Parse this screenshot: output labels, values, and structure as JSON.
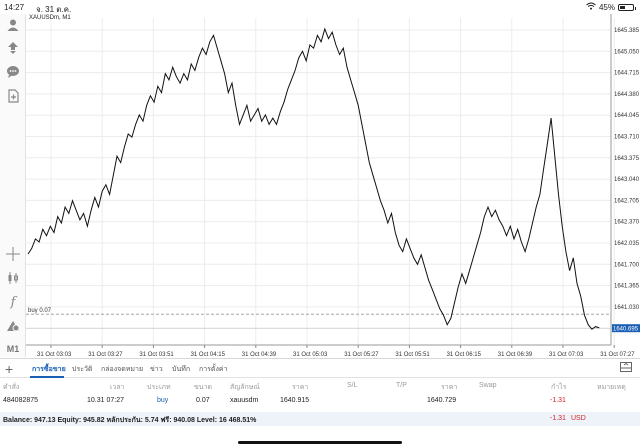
{
  "status_bar": {
    "time": "14:27",
    "date": "จ. 31 ต.ค.",
    "battery": "45%",
    "battery_level": 0.45
  },
  "chart": {
    "symbol": "XAUUSDm, M1",
    "line_color": "#111111",
    "price_ticks": [
      "1645.385",
      "1645.050",
      "1644.715",
      "1644.380",
      "1644.045",
      "1643.710",
      "1643.375",
      "1643.040",
      "1642.705",
      "1642.370",
      "1642.035",
      "1641.700",
      "1641.365",
      "1641.030"
    ],
    "current_price": "1640.695",
    "current_price_color": "#1a5fb4",
    "trade_line_label": "buy 0.07",
    "trade_line_price": 1640.915,
    "time_ticks": [
      "31 Oct 03:03",
      "31 Oct 03:27",
      "31 Oct 03:51",
      "31 Oct 04:15",
      "31 Oct 04:39",
      "31 Oct 05:03",
      "31 Oct 05:27",
      "31 Oct 05:51",
      "31 Oct 06:15",
      "31 Oct 06:39",
      "31 Oct 07:03",
      "31 Oct 07:27"
    ],
    "price_path": [
      [
        0,
        1641.86
      ],
      [
        3,
        1641.95
      ],
      [
        6,
        1642.1
      ],
      [
        9,
        1642.05
      ],
      [
        12,
        1642.25
      ],
      [
        15,
        1642.15
      ],
      [
        18,
        1642.3
      ],
      [
        21,
        1642.2
      ],
      [
        24,
        1642.45
      ],
      [
        27,
        1642.35
      ],
      [
        30,
        1642.6
      ],
      [
        33,
        1642.5
      ],
      [
        36,
        1642.7
      ],
      [
        39,
        1642.55
      ],
      [
        42,
        1642.4
      ],
      [
        45,
        1642.5
      ],
      [
        48,
        1642.3
      ],
      [
        51,
        1642.55
      ],
      [
        54,
        1642.75
      ],
      [
        57,
        1642.6
      ],
      [
        60,
        1642.85
      ],
      [
        63,
        1642.95
      ],
      [
        66,
        1642.8
      ],
      [
        69,
        1643.1
      ],
      [
        72,
        1643.4
      ],
      [
        75,
        1643.3
      ],
      [
        78,
        1643.55
      ],
      [
        81,
        1643.75
      ],
      [
        84,
        1643.7
      ],
      [
        87,
        1643.9
      ],
      [
        90,
        1644.05
      ],
      [
        93,
        1643.95
      ],
      [
        96,
        1644.2
      ],
      [
        99,
        1644.35
      ],
      [
        102,
        1644.25
      ],
      [
        105,
        1644.5
      ],
      [
        108,
        1644.4
      ],
      [
        111,
        1644.7
      ],
      [
        114,
        1644.6
      ],
      [
        117,
        1644.8
      ],
      [
        120,
        1644.65
      ],
      [
        123,
        1644.55
      ],
      [
        126,
        1644.7
      ],
      [
        129,
        1644.6
      ],
      [
        132,
        1644.85
      ],
      [
        135,
        1644.75
      ],
      [
        138,
        1644.95
      ],
      [
        141,
        1645.1
      ],
      [
        144,
        1645.0
      ],
      [
        147,
        1645.2
      ],
      [
        150,
        1645.3
      ],
      [
        153,
        1645.1
      ],
      [
        156,
        1644.9
      ],
      [
        159,
        1644.7
      ],
      [
        162,
        1644.4
      ],
      [
        165,
        1644.55
      ],
      [
        168,
        1644.2
      ],
      [
        171,
        1643.9
      ],
      [
        174,
        1644.05
      ],
      [
        177,
        1644.2
      ],
      [
        180,
        1643.95
      ],
      [
        183,
        1644.05
      ],
      [
        186,
        1644.15
      ],
      [
        189,
        1643.95
      ],
      [
        192,
        1644.05
      ],
      [
        195,
        1643.9
      ],
      [
        198,
        1644.0
      ],
      [
        201,
        1643.9
      ],
      [
        204,
        1644.1
      ],
      [
        207,
        1644.25
      ],
      [
        210,
        1644.45
      ],
      [
        213,
        1644.6
      ],
      [
        216,
        1644.75
      ],
      [
        219,
        1644.95
      ],
      [
        222,
        1645.05
      ],
      [
        225,
        1644.9
      ],
      [
        228,
        1645.15
      ],
      [
        231,
        1645.1
      ],
      [
        234,
        1645.3
      ],
      [
        237,
        1645.2
      ],
      [
        240,
        1645.4
      ],
      [
        243,
        1645.25
      ],
      [
        246,
        1645.35
      ],
      [
        249,
        1645.15
      ],
      [
        252,
        1645.0
      ],
      [
        255,
        1645.1
      ],
      [
        258,
        1644.8
      ],
      [
        261,
        1644.6
      ],
      [
        264,
        1644.4
      ],
      [
        267,
        1644.2
      ],
      [
        270,
        1643.9
      ],
      [
        273,
        1643.6
      ],
      [
        276,
        1643.3
      ],
      [
        279,
        1643.1
      ],
      [
        282,
        1642.9
      ],
      [
        285,
        1642.7
      ],
      [
        288,
        1642.55
      ],
      [
        291,
        1642.35
      ],
      [
        294,
        1642.5
      ],
      [
        297,
        1642.2
      ],
      [
        300,
        1642.0
      ],
      [
        303,
        1641.9
      ],
      [
        306,
        1642.1
      ],
      [
        309,
        1641.95
      ],
      [
        312,
        1641.8
      ],
      [
        315,
        1641.7
      ],
      [
        318,
        1641.85
      ],
      [
        321,
        1641.65
      ],
      [
        324,
        1641.45
      ],
      [
        327,
        1641.3
      ],
      [
        330,
        1641.15
      ],
      [
        333,
        1641.0
      ],
      [
        336,
        1640.9
      ],
      [
        339,
        1640.75
      ],
      [
        342,
        1640.85
      ],
      [
        345,
        1641.1
      ],
      [
        348,
        1641.35
      ],
      [
        351,
        1641.55
      ],
      [
        354,
        1641.4
      ],
      [
        357,
        1641.6
      ],
      [
        360,
        1641.8
      ],
      [
        363,
        1642.0
      ],
      [
        366,
        1642.2
      ],
      [
        369,
        1642.45
      ],
      [
        372,
        1642.6
      ],
      [
        375,
        1642.45
      ],
      [
        378,
        1642.55
      ],
      [
        381,
        1642.4
      ],
      [
        384,
        1642.3
      ],
      [
        387,
        1642.15
      ],
      [
        390,
        1642.3
      ],
      [
        393,
        1642.1
      ],
      [
        396,
        1642.25
      ],
      [
        399,
        1642.05
      ],
      [
        402,
        1641.9
      ],
      [
        405,
        1642.1
      ],
      [
        408,
        1642.35
      ],
      [
        411,
        1642.6
      ],
      [
        414,
        1642.8
      ],
      [
        417,
        1643.2
      ],
      [
        420,
        1643.6
      ],
      [
        423,
        1644.0
      ],
      [
        426,
        1643.4
      ],
      [
        429,
        1642.8
      ],
      [
        432,
        1642.3
      ],
      [
        435,
        1641.9
      ],
      [
        438,
        1641.6
      ],
      [
        441,
        1641.8
      ],
      [
        444,
        1641.4
      ],
      [
        447,
        1641.2
      ],
      [
        450,
        1640.9
      ],
      [
        453,
        1640.75
      ],
      [
        456,
        1640.68
      ],
      [
        459,
        1640.72
      ],
      [
        462,
        1640.7
      ]
    ]
  },
  "tabs": {
    "items": [
      "การซื้อขาย",
      "ประวัติ",
      "กล่องจดหมาย",
      "ข่าว",
      "บันทึก",
      "การตั้งค่า"
    ]
  },
  "table": {
    "headers": [
      "คำสั่ง",
      "เวลา",
      "ประเภท",
      "ขนาด",
      "สัญลักษณ์",
      "ราคา",
      "S/L",
      "T/P",
      "ราคา",
      "Swap",
      "กำไร",
      "หมายเหตุ"
    ],
    "row": {
      "order": "484082875",
      "time": "10.31 07:27",
      "type": "buy",
      "volume": "0.07",
      "symbol": "xauusdm",
      "price": "1640.915",
      "sl": "",
      "tp": "",
      "current": "1640.729",
      "swap": "",
      "profit": "-1.31",
      "comment": ""
    }
  },
  "balance": {
    "text": "Balance: 947.13 Equity: 945.82 หลักประกัน: 5.74 ฟรี: 940.08 Level: 16 468.51%",
    "profit": "-1.31",
    "currency": "USD"
  }
}
